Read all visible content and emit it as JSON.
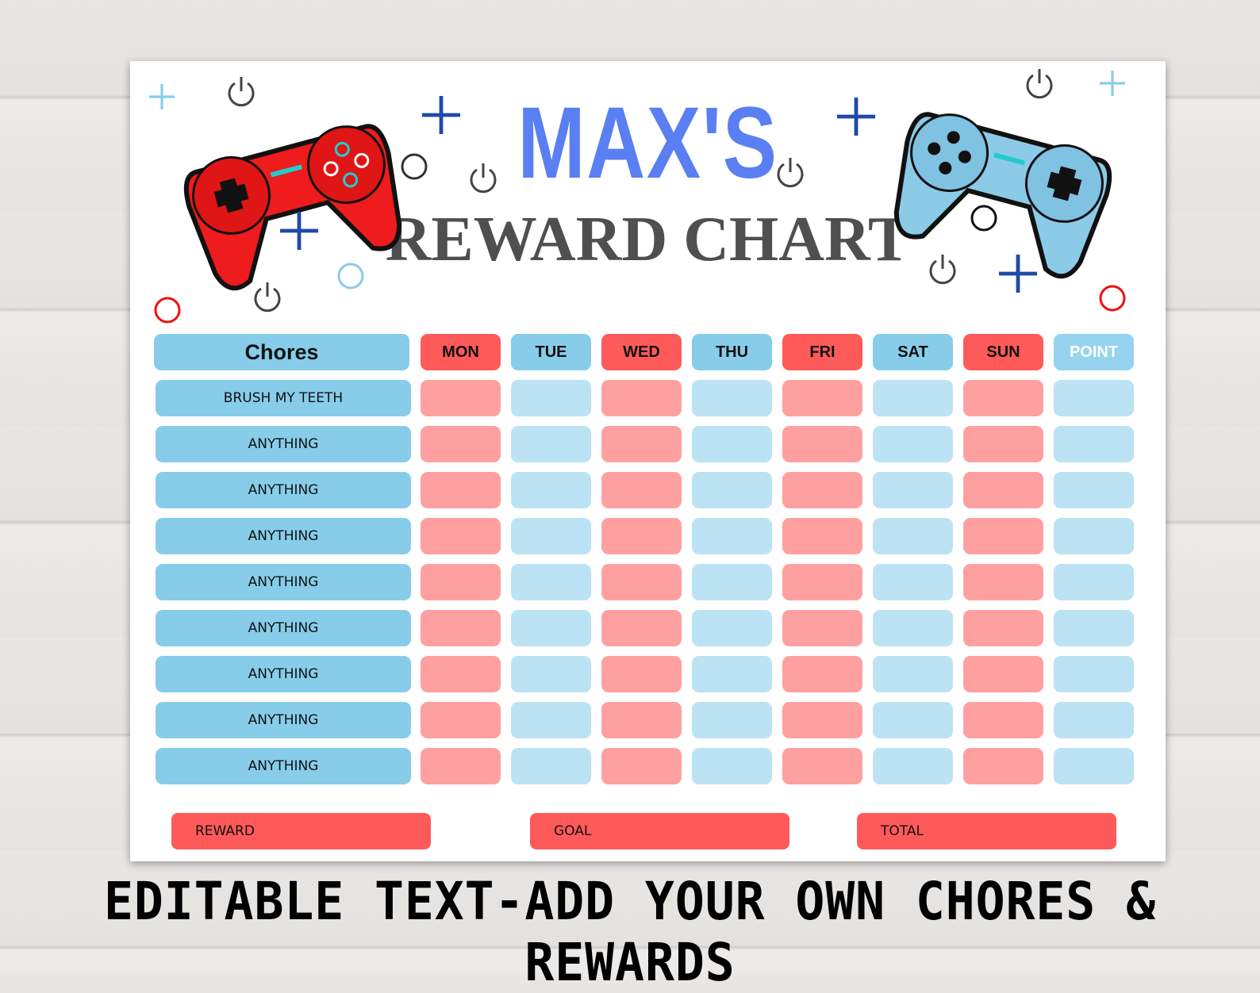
{
  "title": {
    "name": "MAX'S",
    "subtitle": "REWARD CHART"
  },
  "colors": {
    "title_blue": "#5a7ff3",
    "header_blue": "#87cdea",
    "header_red": "#ff5a5a",
    "cell_red": "#ffa0a0",
    "cell_blue": "#bbe3f3"
  },
  "header": {
    "chores": "Chores",
    "days": [
      "MON",
      "TUE",
      "WED",
      "THU",
      "FRI",
      "SAT",
      "SUN"
    ],
    "point": "POINT"
  },
  "chores": [
    "BRUSH MY TEETH",
    "ANYTHING",
    "ANYTHING",
    "ANYTHING",
    "ANYTHING",
    "ANYTHING",
    "ANYTHING",
    "ANYTHING",
    "ANYTHING"
  ],
  "footer": {
    "reward": "REWARD",
    "goal": "GOAL",
    "total": "TOTAL"
  },
  "caption": "EDITABLE TEXT-ADD YOUR OWN CHORES & REWARDS",
  "icons": [
    "red-gamepad-icon",
    "blue-gamepad-icon",
    "plus-icon",
    "power-icon",
    "circle-icon"
  ]
}
